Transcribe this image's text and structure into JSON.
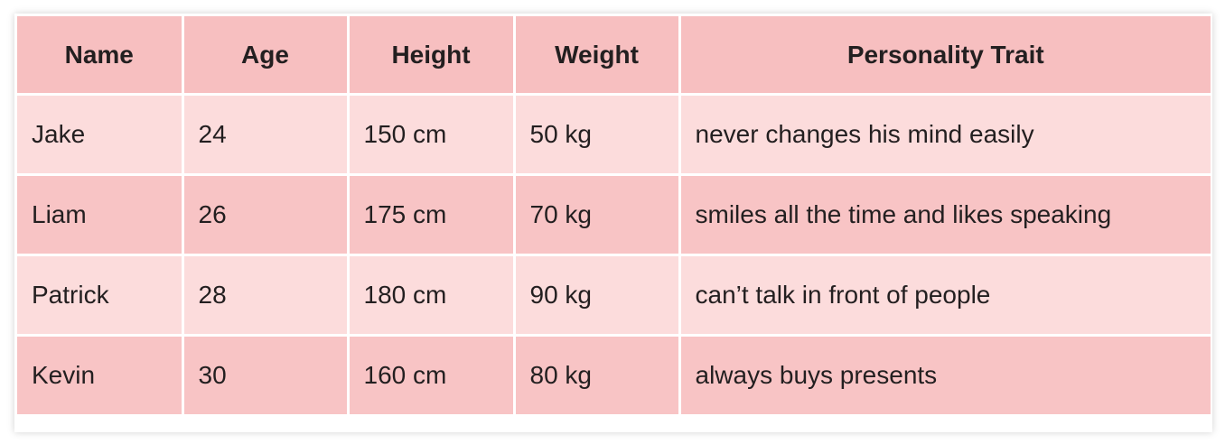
{
  "table": {
    "headers": [
      "Name",
      "Age",
      "Height",
      "Weight",
      "Personality Trait"
    ],
    "rows": [
      [
        "Jake",
        "24",
        "150 cm",
        "50 kg",
        "never changes his mind easily"
      ],
      [
        "Liam",
        "26",
        "175 cm",
        "70 kg",
        "smiles all the time and likes speaking"
      ],
      [
        "Patrick",
        "28",
        "180 cm",
        "90 kg",
        "can’t talk in front of people"
      ],
      [
        "Kevin",
        "30",
        "160 cm",
        "80 kg",
        "always buys presents"
      ]
    ]
  },
  "colors": {
    "header": "#f7bfc0",
    "row_light": "#fcdcdc",
    "row_dark": "#f8c4c5",
    "border": "#ffffff"
  }
}
